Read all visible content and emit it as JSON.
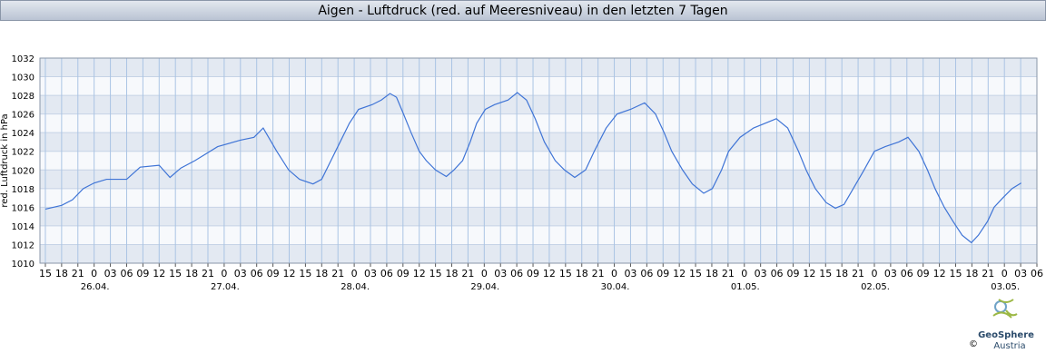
{
  "chart_data": {
    "type": "line",
    "title": "Aigen - Luftdruck (red. auf Meeresniveau) in den letzten 7 Tagen",
    "y_label": "red. Luftdruck in hPa",
    "xlim": [
      -10,
      174
    ],
    "ylim": [
      1010,
      1032
    ],
    "yticks": [
      1010,
      1012,
      1014,
      1016,
      1018,
      1020,
      1022,
      1024,
      1026,
      1028,
      1030,
      1032
    ],
    "xticks": [
      {
        "value": -9,
        "label": "15"
      },
      {
        "value": -6,
        "label": "18"
      },
      {
        "value": -3,
        "label": "21"
      },
      {
        "value": 0,
        "label": "0"
      },
      {
        "value": 3,
        "label": "03"
      },
      {
        "value": 6,
        "label": "06"
      },
      {
        "value": 9,
        "label": "09"
      },
      {
        "value": 12,
        "label": "12"
      },
      {
        "value": 15,
        "label": "15"
      },
      {
        "value": 18,
        "label": "18"
      },
      {
        "value": 21,
        "label": "21"
      },
      {
        "value": 24,
        "label": "0"
      },
      {
        "value": 27,
        "label": "03"
      },
      {
        "value": 30,
        "label": "06"
      },
      {
        "value": 33,
        "label": "09"
      },
      {
        "value": 36,
        "label": "12"
      },
      {
        "value": 39,
        "label": "15"
      },
      {
        "value": 42,
        "label": "18"
      },
      {
        "value": 45,
        "label": "21"
      },
      {
        "value": 48,
        "label": "0"
      },
      {
        "value": 51,
        "label": "03"
      },
      {
        "value": 54,
        "label": "06"
      },
      {
        "value": 57,
        "label": "09"
      },
      {
        "value": 60,
        "label": "12"
      },
      {
        "value": 63,
        "label": "15"
      },
      {
        "value": 66,
        "label": "18"
      },
      {
        "value": 69,
        "label": "21"
      },
      {
        "value": 72,
        "label": "0"
      },
      {
        "value": 75,
        "label": "03"
      },
      {
        "value": 78,
        "label": "06"
      },
      {
        "value": 81,
        "label": "09"
      },
      {
        "value": 84,
        "label": "12"
      },
      {
        "value": 87,
        "label": "15"
      },
      {
        "value": 90,
        "label": "18"
      },
      {
        "value": 93,
        "label": "21"
      },
      {
        "value": 96,
        "label": "0"
      },
      {
        "value": 99,
        "label": "03"
      },
      {
        "value": 102,
        "label": "06"
      },
      {
        "value": 105,
        "label": "09"
      },
      {
        "value": 108,
        "label": "12"
      },
      {
        "value": 111,
        "label": "15"
      },
      {
        "value": 114,
        "label": "18"
      },
      {
        "value": 117,
        "label": "21"
      },
      {
        "value": 120,
        "label": "0"
      },
      {
        "value": 123,
        "label": "03"
      },
      {
        "value": 126,
        "label": "06"
      },
      {
        "value": 129,
        "label": "09"
      },
      {
        "value": 132,
        "label": "12"
      },
      {
        "value": 135,
        "label": "15"
      },
      {
        "value": 138,
        "label": "18"
      },
      {
        "value": 141,
        "label": "21"
      },
      {
        "value": 144,
        "label": "0"
      },
      {
        "value": 147,
        "label": "03"
      },
      {
        "value": 150,
        "label": "06"
      },
      {
        "value": 153,
        "label": "09"
      },
      {
        "value": 156,
        "label": "12"
      },
      {
        "value": 159,
        "label": "15"
      },
      {
        "value": 162,
        "label": "18"
      },
      {
        "value": 165,
        "label": "21"
      },
      {
        "value": 168,
        "label": "0"
      },
      {
        "value": 171,
        "label": "03"
      },
      {
        "value": 174,
        "label": "06"
      }
    ],
    "date_labels": [
      {
        "value": 0,
        "label": "26.04."
      },
      {
        "value": 24,
        "label": "27.04."
      },
      {
        "value": 48,
        "label": "28.04."
      },
      {
        "value": 72,
        "label": "29.04."
      },
      {
        "value": 96,
        "label": "30.04."
      },
      {
        "value": 120,
        "label": "01.05."
      },
      {
        "value": 144,
        "label": "02.05."
      },
      {
        "value": 168,
        "label": "03.05."
      }
    ],
    "grid": true,
    "color": "#3f74d6",
    "x": [
      -9,
      -6,
      -4,
      -2,
      0,
      2.3,
      6,
      8.5,
      12,
      14,
      16,
      18.6,
      22.8,
      27,
      29.5,
      31.2,
      33.7,
      35.9,
      37.9,
      40.4,
      42,
      43.7,
      45.4,
      47.1,
      48.8,
      51.3,
      53,
      54.6,
      55.8,
      57.1,
      58.5,
      60,
      61.3,
      63,
      65,
      66.4,
      68,
      69.4,
      70.6,
      72.2,
      73.9,
      76.4,
      78.1,
      79.8,
      81.4,
      83.1,
      85.1,
      86.8,
      88.7,
      90.7,
      92.3,
      94.5,
      96.5,
      99,
      101.6,
      103.6,
      105.2,
      106.6,
      108.6,
      110.4,
      112.5,
      114.1,
      115.8,
      117.1,
      119.2,
      121.7,
      125.9,
      128,
      130,
      131.4,
      133.1,
      135.1,
      136.8,
      138.4,
      140.1,
      142.1,
      144,
      146,
      148.5,
      150.2,
      152.2,
      153.8,
      155.2,
      156.9,
      158.5,
      160.2,
      161.9,
      163.2,
      164.9,
      166.1,
      167.7,
      169.4,
      171.1
    ],
    "values": [
      1015.8,
      1016.2,
      1016.8,
      1018.0,
      1018.6,
      1019.0,
      1019.0,
      1020.3,
      1020.5,
      1019.2,
      1020.2,
      1021.0,
      1022.5,
      1023.2,
      1023.5,
      1024.5,
      1022,
      1020,
      1019,
      1018.5,
      1019,
      1021,
      1023,
      1025,
      1026.5,
      1027,
      1027.5,
      1028.2,
      1027.8,
      1026,
      1024,
      1022,
      1021,
      1020,
      1019.3,
      1020,
      1021,
      1023,
      1025,
      1026.5,
      1027,
      1027.5,
      1028.3,
      1027.5,
      1025.5,
      1023,
      1021,
      1020,
      1019.2,
      1020,
      1022,
      1024.5,
      1026,
      1026.5,
      1027.2,
      1026,
      1024,
      1022,
      1020,
      1018.5,
      1017.5,
      1018,
      1020,
      1022,
      1023.5,
      1024.5,
      1025.5,
      1024.5,
      1022,
      1020,
      1018,
      1016.5,
      1015.9,
      1016.3,
      1018,
      1020,
      1022,
      1022.5,
      1023,
      1023.5,
      1022,
      1020,
      1018,
      1016,
      1014.5,
      1013,
      1012.2,
      1013,
      1014.5,
      1016,
      1017,
      1018,
      1018.6
    ]
  },
  "logo": {
    "name": "GeoSphere",
    "sub": "Austria",
    "copyright": "©"
  }
}
